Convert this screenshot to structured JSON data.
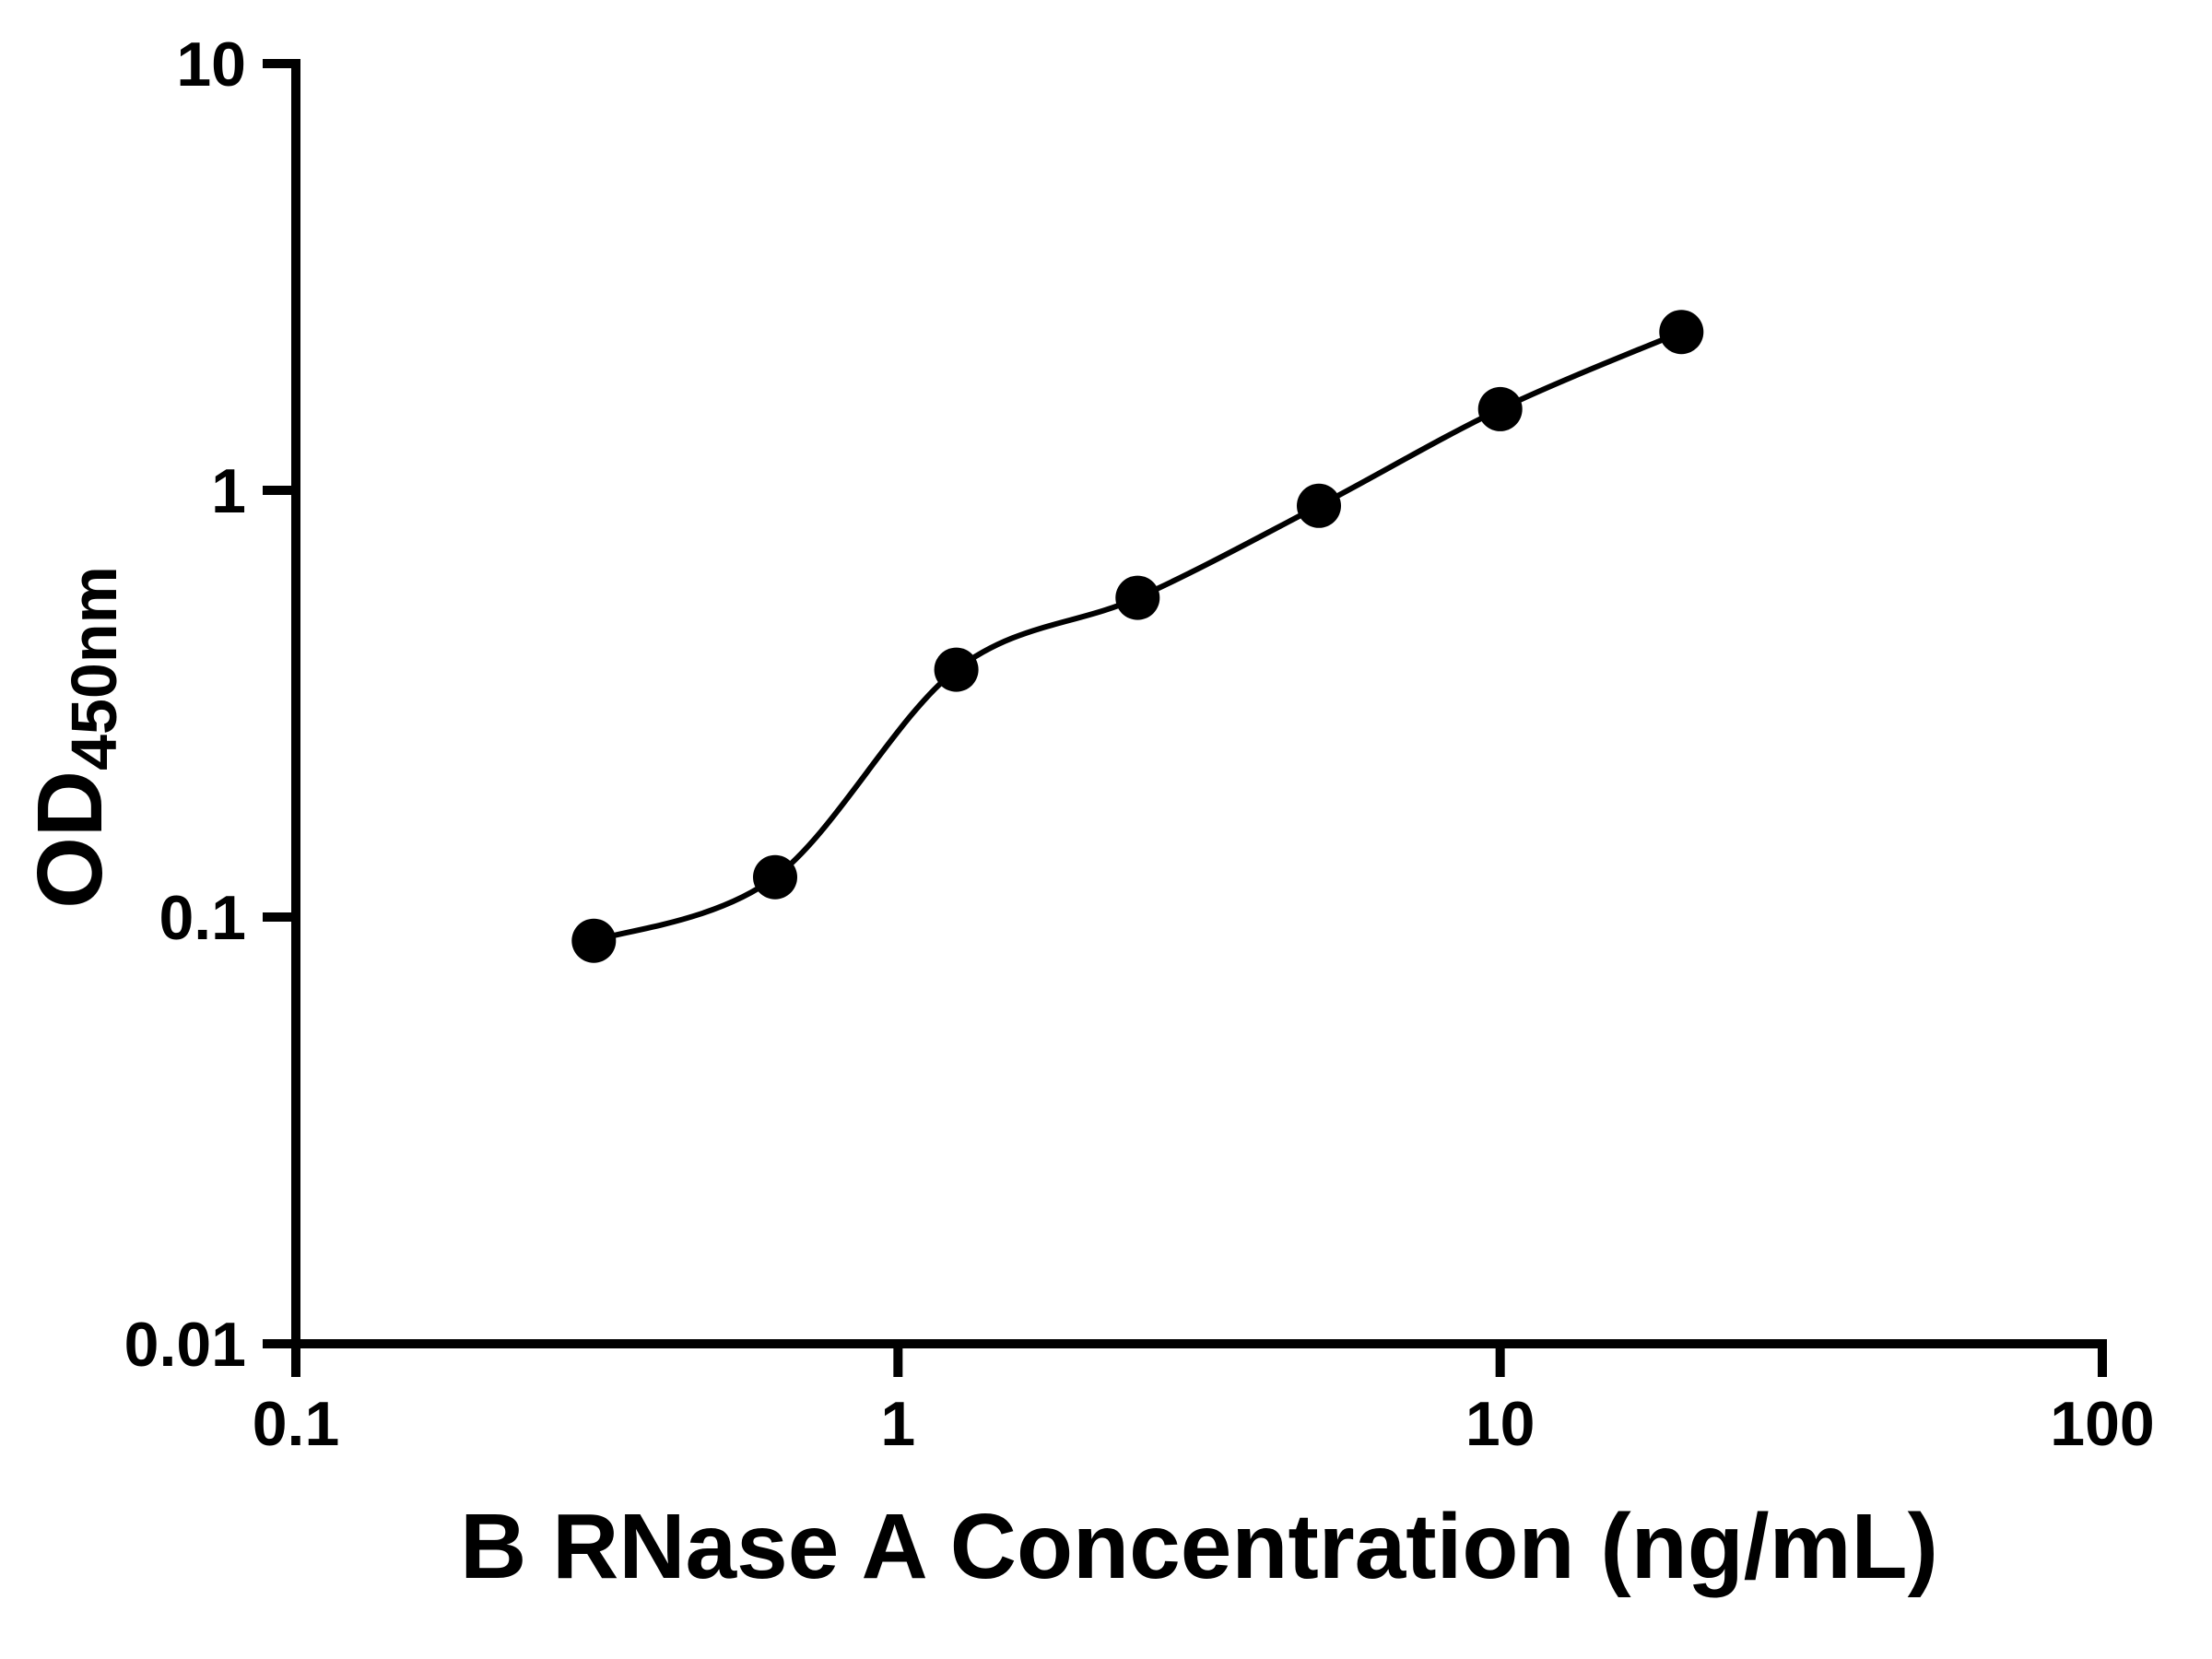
{
  "figure": {
    "background": "#ffffff"
  },
  "chart_data": {
    "type": "scatter",
    "xlabel": "B RNase A Concentration (ng/mL)",
    "ylabel_main": "OD",
    "ylabel_sub": "450nm",
    "xscale": "log",
    "yscale": "log",
    "xlim": [
      0.1,
      100
    ],
    "ylim": [
      0.01,
      10
    ],
    "x_ticks": [
      "0.1",
      "1",
      "10",
      "100"
    ],
    "y_ticks": [
      "0.01",
      "0.1",
      "1",
      "10"
    ],
    "grid": false,
    "marker": {
      "shape": "circle",
      "color": "#000000"
    },
    "line": {
      "type": "fitted-curve",
      "color": "#000000"
    },
    "series": [
      {
        "x": [
          0.3125,
          0.625,
          1.25,
          2.5,
          5,
          10,
          20
        ],
        "y": [
          0.088,
          0.124,
          0.38,
          0.56,
          0.92,
          1.55,
          2.35
        ]
      }
    ]
  }
}
